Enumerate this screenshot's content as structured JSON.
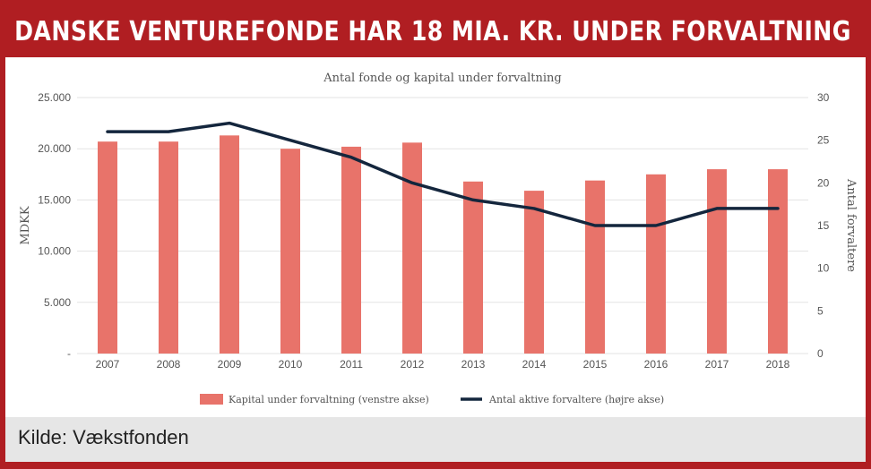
{
  "headline": "DANSKE VENTUREFONDE HAR 18 MIA. KR. UNDER FORVALTNING",
  "source": "Kilde: Vækstfonden",
  "colors": {
    "frame": "#b01e22",
    "bar": "#e8736a",
    "line": "#14263d",
    "footer": "#e6e6e6"
  },
  "chart_data": {
    "type": "bar",
    "title": "Antal fonde og kapital under forvaltning",
    "categories": [
      "2007",
      "2008",
      "2009",
      "2010",
      "2011",
      "2012",
      "2013",
      "2014",
      "2015",
      "2016",
      "2017",
      "2018"
    ],
    "series": [
      {
        "name": "Kapital under forvaltning (venstre akse)",
        "type": "bar",
        "axis": "left",
        "values": [
          20700,
          20700,
          21300,
          20000,
          20200,
          20600,
          16800,
          15900,
          16900,
          17500,
          18000,
          18000
        ]
      },
      {
        "name": "Antal aktive forvaltere (højre akse)",
        "type": "line",
        "axis": "right",
        "values": [
          26,
          26,
          27,
          25,
          23,
          20,
          18,
          17,
          15,
          15,
          17,
          17
        ]
      }
    ],
    "ylabel": "MDKK",
    "y2label": "Antal forvaltere",
    "ylim": [
      0,
      25000
    ],
    "y2lim": [
      0,
      30
    ],
    "yticks": [
      "-",
      "5.000",
      "10.000",
      "15.000",
      "20.000",
      "25.000"
    ],
    "y2ticks": [
      "0",
      "5",
      "10",
      "15",
      "20",
      "25",
      "30"
    ],
    "grid": true,
    "legend_position": "bottom"
  }
}
